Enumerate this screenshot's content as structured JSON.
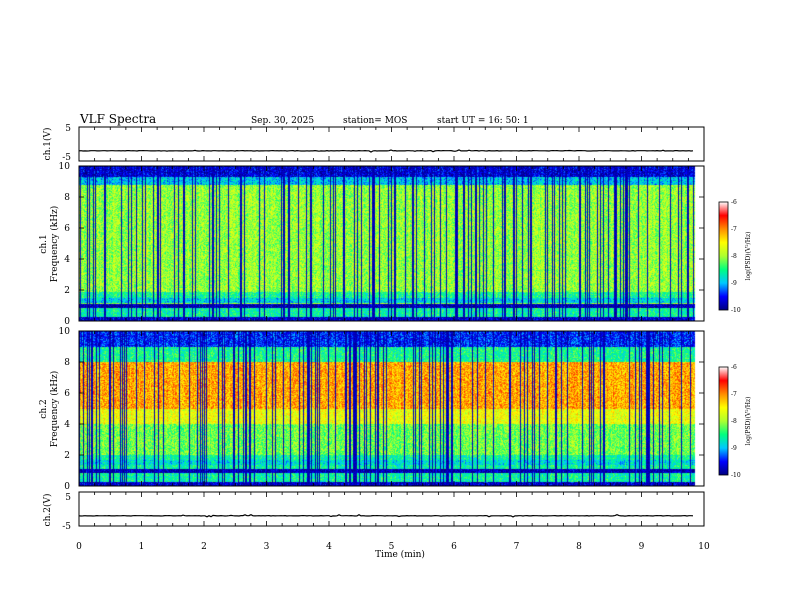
{
  "header": {
    "title": "VLF Spectra",
    "date": "Sep. 30, 2025",
    "station": "station= MOS",
    "start_ut": "start  UT =   16: 50: 1"
  },
  "chart_data": [
    {
      "type": "line",
      "id": "ch1_voltage",
      "ylabel": "ch.1(V)",
      "ylim": [
        -5,
        5
      ],
      "yticks": [
        "5",
        "-5"
      ],
      "baseline": -2,
      "xlim": [
        0,
        10
      ],
      "data_end": 9.85
    },
    {
      "type": "heatmap",
      "id": "ch1_spectrogram",
      "ylabel_top": "ch.1",
      "ylabel": "Frequency (kHz)",
      "ylim": [
        0,
        10
      ],
      "yticks": [
        "0",
        "2",
        "4",
        "6",
        "8",
        "10"
      ],
      "xlim": [
        0,
        10
      ],
      "data_end": 9.85,
      "colorbar": {
        "label": "log(PSD)(V²/Hz)",
        "range": [
          -10,
          -6
        ],
        "ticks": [
          "-6",
          "-7",
          "-8",
          "-9",
          "-10"
        ]
      }
    },
    {
      "type": "heatmap",
      "id": "ch2_spectrogram",
      "ylabel_top": "ch.2",
      "ylabel": "Frequency (kHz)",
      "ylim": [
        0,
        10
      ],
      "yticks": [
        "0",
        "2",
        "4",
        "6",
        "8",
        "10"
      ],
      "xlim": [
        0,
        10
      ],
      "data_end": 9.85,
      "colorbar": {
        "label": "log(PSD)(V²/Hz)",
        "range": [
          -10,
          -6
        ],
        "ticks": [
          "-6",
          "-7",
          "-8",
          "-9",
          "-10"
        ]
      }
    },
    {
      "type": "line",
      "id": "ch2_voltage",
      "ylabel": "ch.2(V)",
      "ylim": [
        -5,
        5
      ],
      "yticks": [
        "5",
        "-5"
      ],
      "baseline": -2,
      "xlim": [
        0,
        10
      ],
      "data_end": 9.85
    }
  ],
  "xaxis": {
    "label": "Time (min)",
    "ticks": [
      "0",
      "1",
      "2",
      "3",
      "4",
      "5",
      "6",
      "7",
      "8",
      "9",
      "10"
    ]
  },
  "colors": {
    "cmap": [
      "#000080",
      "#0000ff",
      "#00c8ff",
      "#00ff7f",
      "#adff2f",
      "#ffff00",
      "#ff8c00",
      "#ff0000",
      "#ffffff"
    ]
  }
}
